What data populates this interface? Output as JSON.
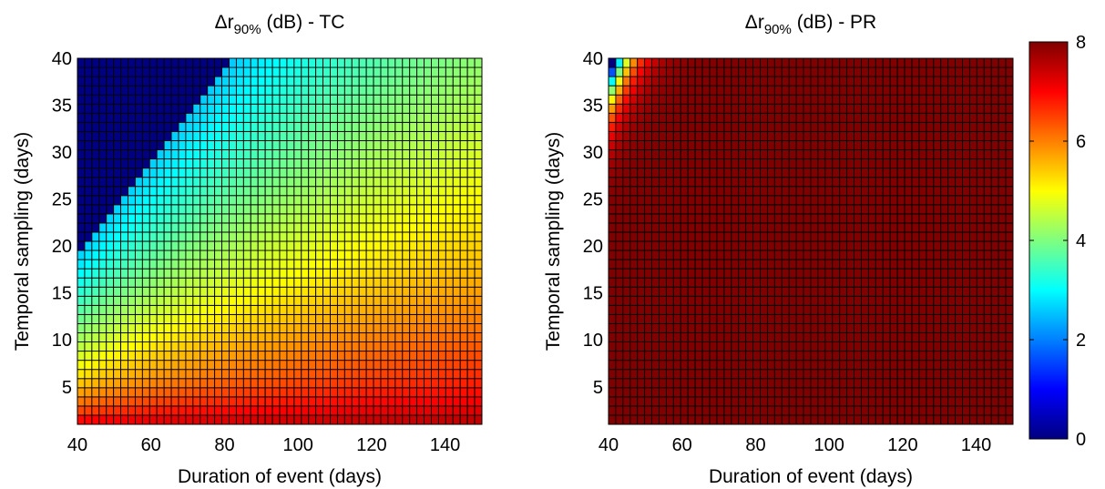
{
  "chart_data": [
    {
      "type": "heatmap",
      "title": {
        "delta": "Δ",
        "r": "r",
        "sub": "90%",
        "rest": " (dB) - TC"
      },
      "xlabel": "Duration of event (days)",
      "ylabel": "Temporal sampling (days)",
      "xlim": [
        40,
        150
      ],
      "ylim": [
        1,
        40
      ],
      "xticks": [
        40,
        60,
        80,
        100,
        120,
        140
      ],
      "yticks": [
        5,
        10,
        15,
        20,
        25,
        30,
        35,
        40
      ],
      "x_range": [
        40,
        150
      ],
      "y_range": [
        1,
        40
      ],
      "nx": 56,
      "ny": 40,
      "value_model": "8*(1 - min(1, y/x)^0.55); z = 0 where y/x >= 0.5",
      "colormap": "jet",
      "clim": [
        0,
        8
      ]
    },
    {
      "type": "heatmap",
      "title": {
        "delta": "Δ",
        "r": "r",
        "sub": "90%",
        "rest": " (dB) - PR"
      },
      "xlabel": "Duration of event (days)",
      "ylabel": "Temporal sampling (days)",
      "xlim": [
        40,
        150
      ],
      "ylim": [
        1,
        40
      ],
      "xticks": [
        40,
        60,
        80,
        100,
        120,
        140
      ],
      "yticks": [
        5,
        10,
        15,
        20,
        25,
        30,
        35,
        40
      ],
      "x_range": [
        40,
        150
      ],
      "y_range": [
        1,
        40
      ],
      "nx": 56,
      "ny": 40,
      "value_model": "8 - 8*exp(-9*(x/y - 1))",
      "colormap": "jet",
      "clim": [
        0,
        8
      ]
    }
  ],
  "colorbar": {
    "ticks": [
      0,
      2,
      4,
      6,
      8
    ],
    "clim": [
      0,
      8
    ],
    "colormap": "jet"
  }
}
